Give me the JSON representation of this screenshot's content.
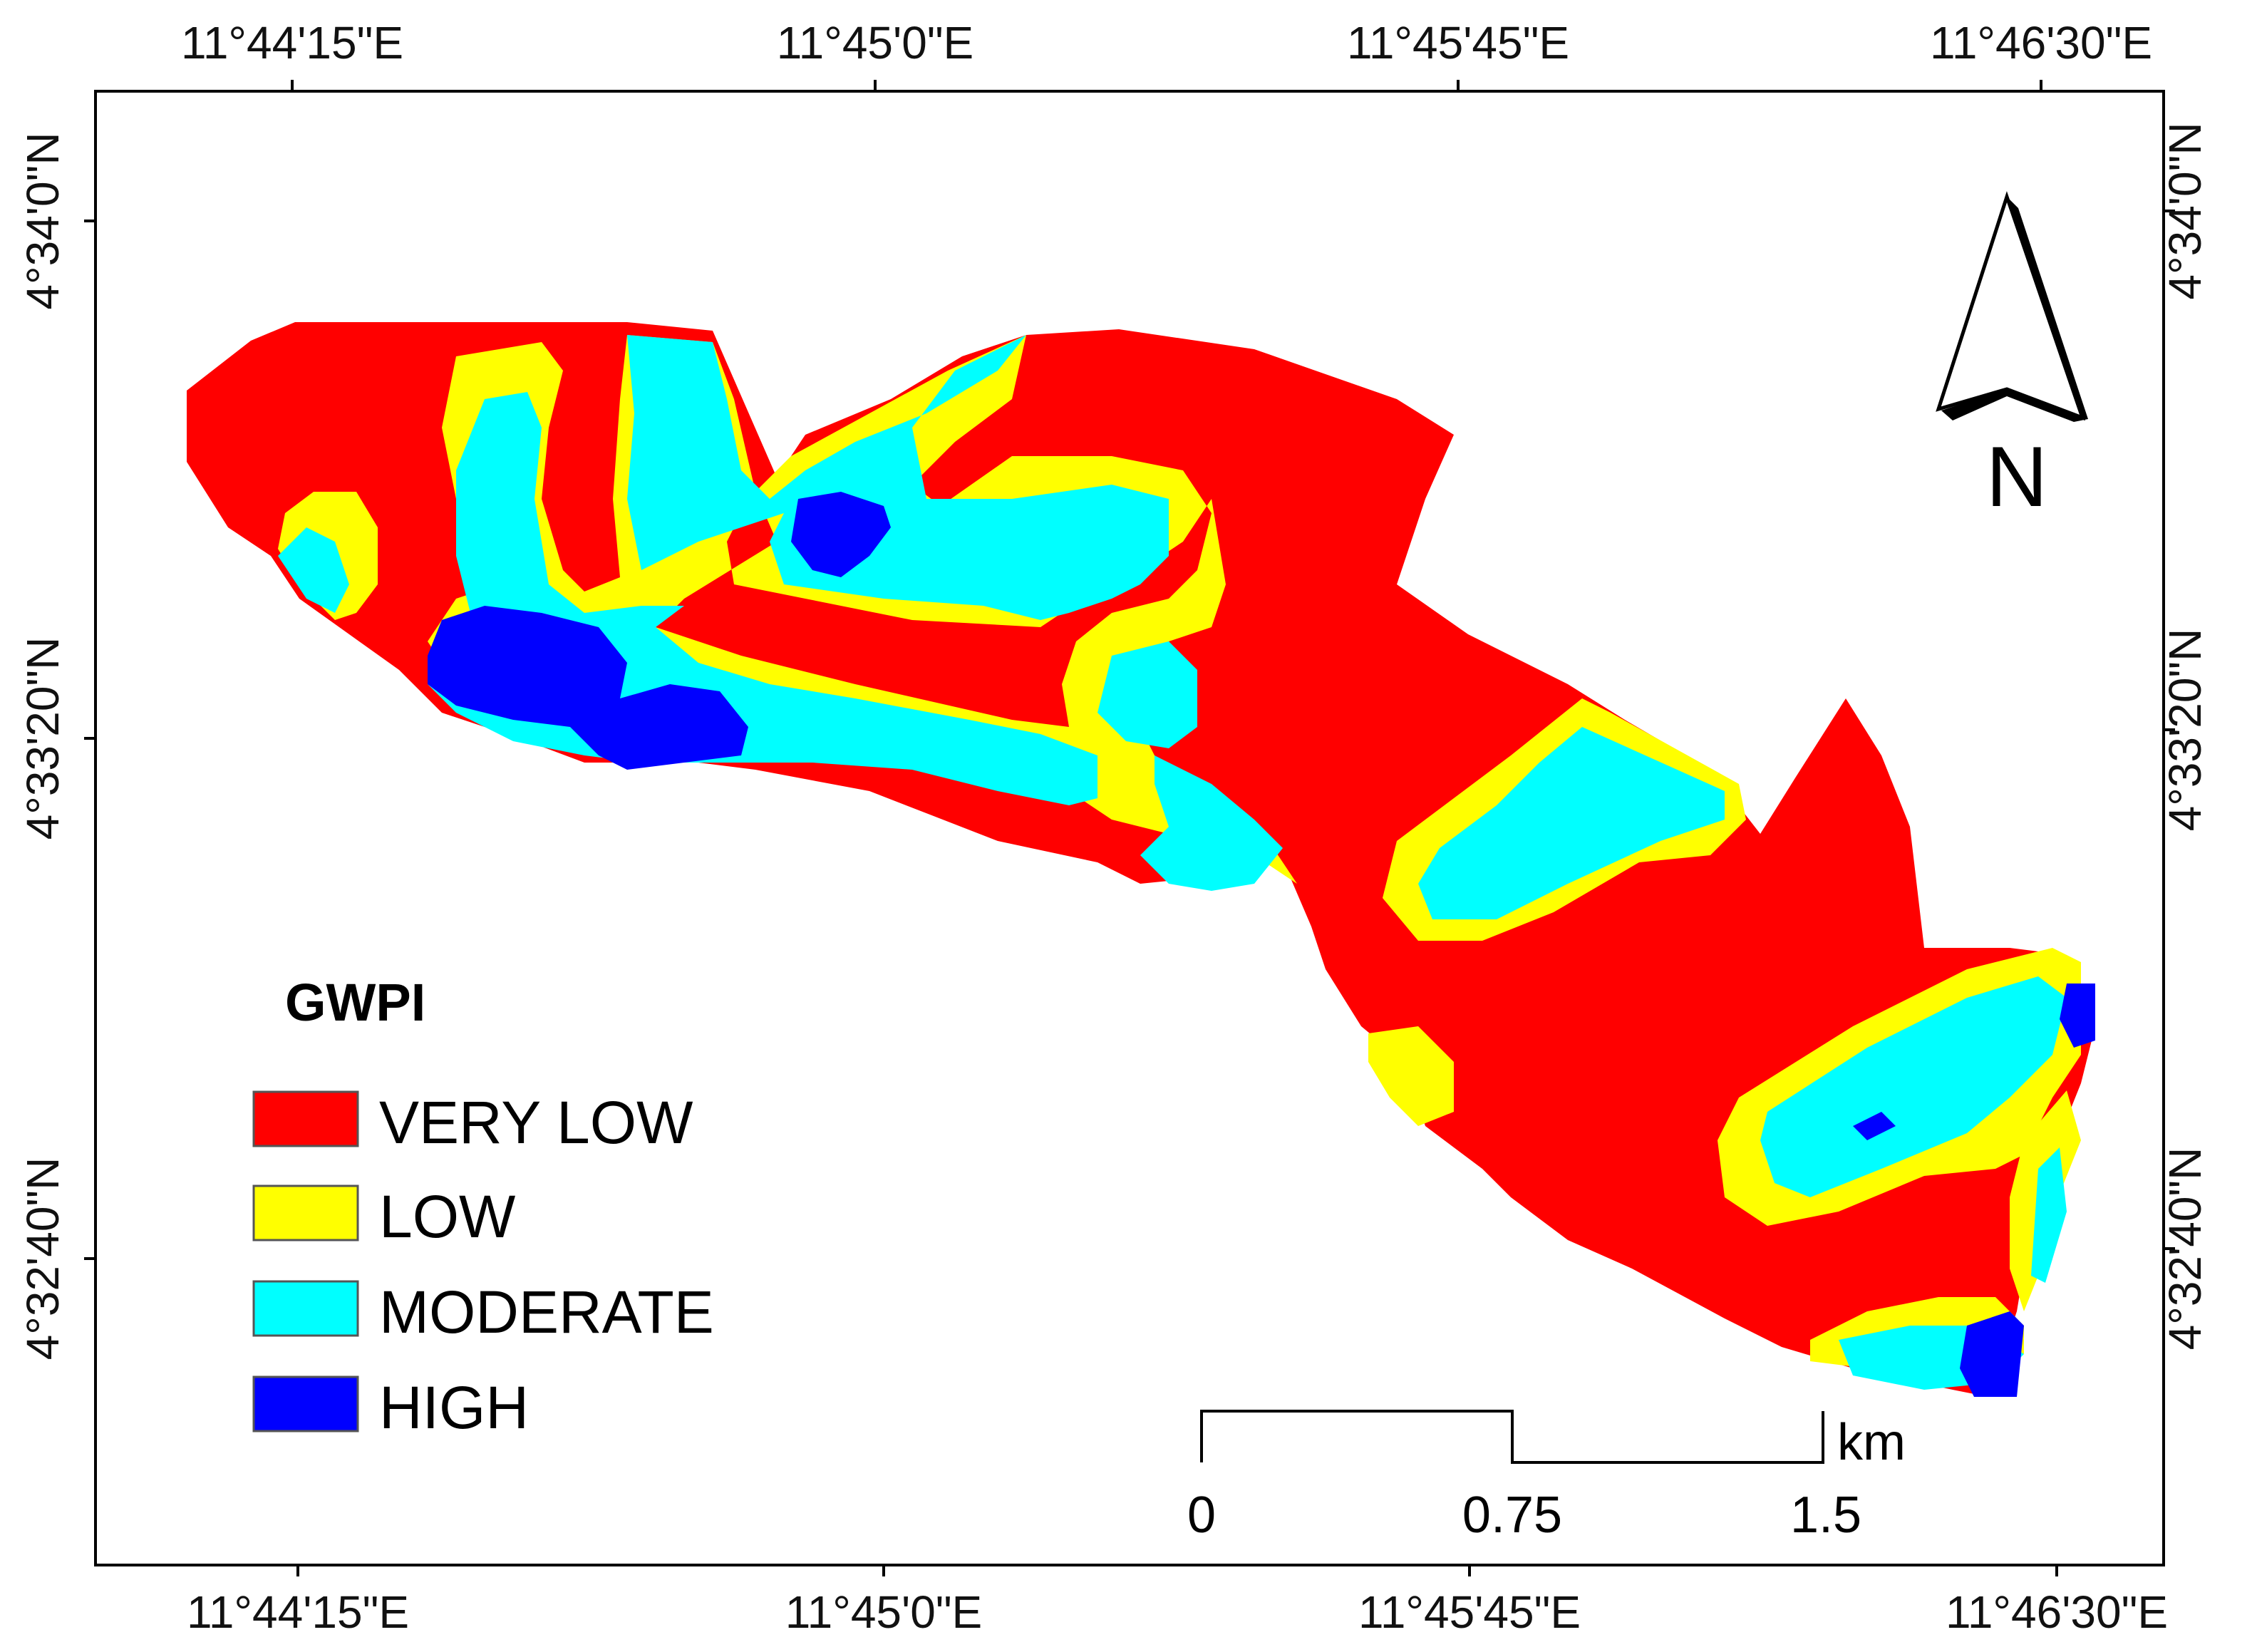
{
  "map": {
    "ticks": {
      "top": [
        "11°44'15\"E",
        "11°45'0\"E",
        "11°45'45\"E",
        "11°46'30\"E"
      ],
      "bottom": [
        "11°44'15\"E",
        "11°45'0\"E",
        "11°45'45\"E",
        "11°46'30\"E"
      ],
      "left": [
        "4°34'0\"N",
        "4°33'20\"N",
        "4°32'40\"N"
      ],
      "right": [
        "4°34'0\"N",
        "4°33'20\"N",
        "4°32'40\"N"
      ]
    },
    "legend": {
      "title": "GWPI",
      "classes": [
        {
          "label": "VERY LOW",
          "color": "#FF0000"
        },
        {
          "label": "LOW",
          "color": "#FFFF00"
        },
        {
          "label": "MODERATE",
          "color": "#00FFFF"
        },
        {
          "label": "HIGH",
          "color": "#0000FF"
        }
      ]
    },
    "scale_bar": {
      "labels": [
        "0",
        "0.75",
        "1.5"
      ],
      "unit": "km"
    },
    "north_arrow": {
      "label": "N"
    }
  }
}
